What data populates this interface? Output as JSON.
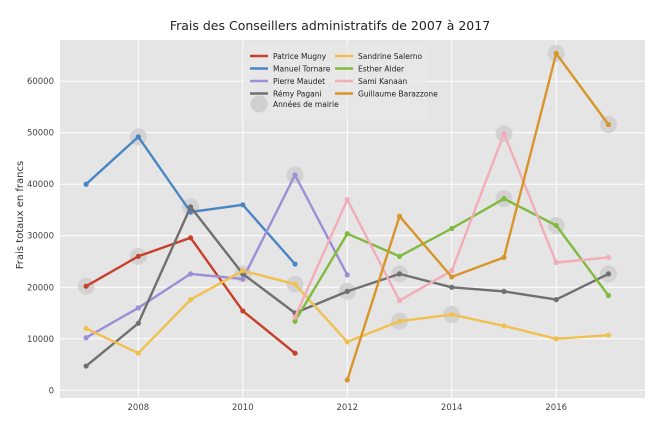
{
  "chart_data": {
    "type": "line",
    "title": "Frais des Conseillers administratifs de 2007 à 2017",
    "xlabel": "",
    "ylabel": "Frais totaux en francs",
    "xlim": [
      2006.5,
      2017.7
    ],
    "ylim": [
      -1500,
      68000
    ],
    "xticks": [
      2008,
      2010,
      2012,
      2014,
      2016
    ],
    "yticks": [
      0,
      10000,
      20000,
      30000,
      40000,
      50000,
      60000
    ],
    "grid": true,
    "legend_position": "top-center",
    "series": [
      {
        "name": "Patrice Mugny",
        "color": "#c8402c",
        "x": [
          2007,
          2008,
          2009,
          2010,
          2011
        ],
        "values": [
          20200,
          26000,
          29600,
          15400,
          7200
        ]
      },
      {
        "name": "Manuel Tornare",
        "color": "#4a86c4",
        "x": [
          2007,
          2008,
          2009,
          2010,
          2011
        ],
        "values": [
          40000,
          49200,
          34600,
          36000,
          24500
        ]
      },
      {
        "name": "Pierre Maudet",
        "color": "#9c8fd6",
        "x": [
          2007,
          2008,
          2009,
          2010,
          2011,
          2012
        ],
        "values": [
          10200,
          16000,
          22600,
          21600,
          41800,
          22400
        ]
      },
      {
        "name": "Rémy Pagani",
        "color": "#707070",
        "x": [
          2007,
          2008,
          2009,
          2010,
          2011,
          2012,
          2013,
          2014,
          2015,
          2016,
          2017
        ],
        "values": [
          4700,
          13000,
          35600,
          22600,
          15000,
          19200,
          22600,
          20000,
          19200,
          17600,
          22600
        ]
      },
      {
        "name": "Sandrine Salerno",
        "color": "#f0c050",
        "x": [
          2007,
          2008,
          2009,
          2010,
          2011,
          2012,
          2013,
          2014,
          2015,
          2016,
          2017
        ],
        "values": [
          12000,
          7200,
          17600,
          23200,
          20600,
          9400,
          13400,
          14700,
          12500,
          10000,
          10700
        ]
      },
      {
        "name": "Esther Alder",
        "color": "#80ba3e",
        "x": [
          2011,
          2012,
          2013,
          2014,
          2015,
          2016,
          2017
        ],
        "values": [
          13400,
          30400,
          26000,
          31400,
          37200,
          32000,
          18400
        ]
      },
      {
        "name": "Sami Kanaan",
        "color": "#f2adb8",
        "x": [
          2011,
          2012,
          2013,
          2014,
          2015,
          2016,
          2017
        ],
        "values": [
          14200,
          37000,
          17400,
          23200,
          49800,
          24800,
          25800
        ]
      },
      {
        "name": "Guillaume Barazzone",
        "color": "#d8952c",
        "x": [
          2012,
          2013,
          2014,
          2015,
          2016,
          2017
        ],
        "values": [
          2000,
          33800,
          22000,
          25800,
          65400,
          51600
        ]
      }
    ],
    "mayor_years": {
      "name": "Années de mairie",
      "color": "#cfcfcf",
      "points": [
        {
          "x": 2007,
          "y": 20200
        },
        {
          "x": 2008,
          "y": 49200
        },
        {
          "x": 2008,
          "y": 26000
        },
        {
          "x": 2009,
          "y": 35600
        },
        {
          "x": 2010,
          "y": 22600
        },
        {
          "x": 2011,
          "y": 20600
        },
        {
          "x": 2011,
          "y": 41800
        },
        {
          "x": 2012,
          "y": 19200
        },
        {
          "x": 2013,
          "y": 13400
        },
        {
          "x": 2013,
          "y": 22600
        },
        {
          "x": 2014,
          "y": 14700
        },
        {
          "x": 2015,
          "y": 49800
        },
        {
          "x": 2015,
          "y": 37200
        },
        {
          "x": 2016,
          "y": 65400
        },
        {
          "x": 2016,
          "y": 32000
        },
        {
          "x": 2017,
          "y": 51600
        },
        {
          "x": 2017,
          "y": 22600
        }
      ]
    }
  }
}
